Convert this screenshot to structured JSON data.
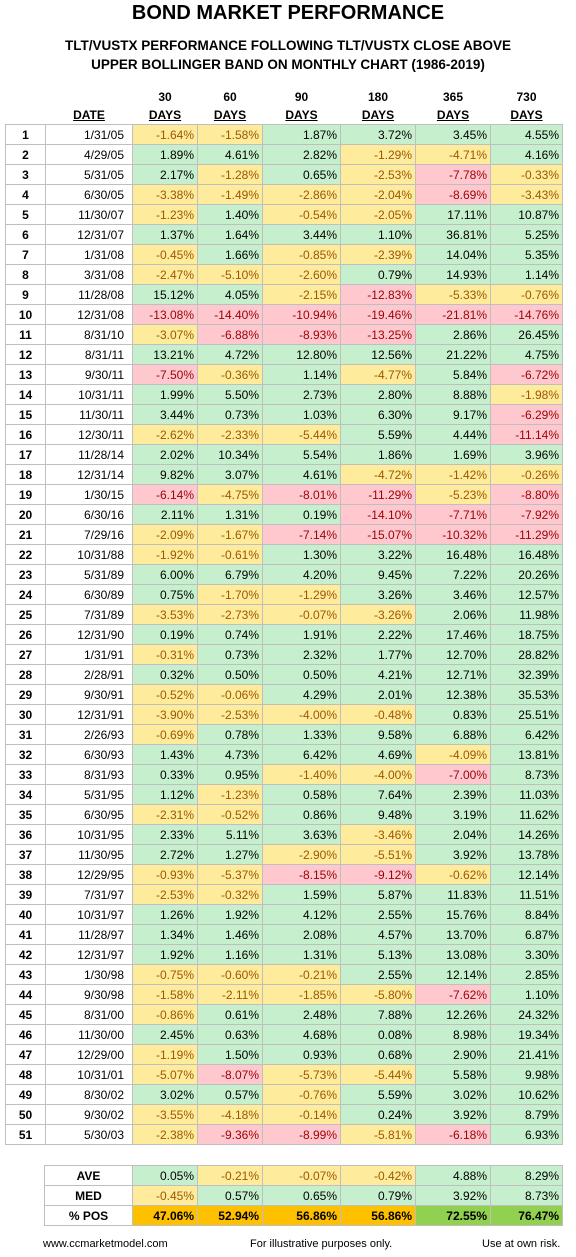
{
  "header": {
    "title": "BOND MARKET PERFORMANCE",
    "subtitle_lines": [
      "TLT/VUSTX PERFORMANCE FOLLOWING TLT/VUSTX CLOSE ABOVE",
      "UPPER BOLLINGER BAND ON MONTHLY CHART (1986-2019)"
    ]
  },
  "table": {
    "date_header": "DATE",
    "columns": [
      {
        "days": "30",
        "unit": "DAYS"
      },
      {
        "days": "60",
        "unit": "DAYS"
      },
      {
        "days": "90",
        "unit": "DAYS"
      },
      {
        "days": "180",
        "unit": "DAYS"
      },
      {
        "days": "365",
        "unit": "DAYS"
      },
      {
        "days": "730",
        "unit": "DAYS"
      }
    ],
    "fills": {
      "positive": "#c6efce",
      "negative": "#ffeb9c",
      "large_negative": "#ffc7ce"
    },
    "rows": [
      [
        1,
        "1/31/05",
        "-1.64%",
        "-1.58%",
        "1.87%",
        "3.72%",
        "3.45%",
        "4.55%"
      ],
      [
        2,
        "4/29/05",
        "1.89%",
        "4.61%",
        "2.82%",
        "-1.29%",
        "-4.71%",
        "4.16%"
      ],
      [
        3,
        "5/31/05",
        "2.17%",
        "-1.28%",
        "0.65%",
        "-2.53%",
        "-7.78%",
        "-0.33%"
      ],
      [
        4,
        "6/30/05",
        "-3.38%",
        "-1.49%",
        "-2.86%",
        "-2.04%",
        "-8.69%",
        "-3.43%"
      ],
      [
        5,
        "11/30/07",
        "-1.23%",
        "1.40%",
        "-0.54%",
        "-2.05%",
        "17.11%",
        "10.87%"
      ],
      [
        6,
        "12/31/07",
        "1.37%",
        "1.64%",
        "3.44%",
        "1.10%",
        "36.81%",
        "5.25%"
      ],
      [
        7,
        "1/31/08",
        "-0.45%",
        "1.66%",
        "-0.85%",
        "-2.39%",
        "14.04%",
        "5.35%"
      ],
      [
        8,
        "3/31/08",
        "-2.47%",
        "-5.10%",
        "-2.60%",
        "0.79%",
        "14.93%",
        "1.14%"
      ],
      [
        9,
        "11/28/08",
        "15.12%",
        "4.05%",
        "-2.15%",
        "-12.83%",
        "-5.33%",
        "-0.76%"
      ],
      [
        10,
        "12/31/08",
        "-13.08%",
        "-14.40%",
        "-10.94%",
        "-19.46%",
        "-21.81%",
        "-14.76%"
      ],
      [
        11,
        "8/31/10",
        "-3.07%",
        "-6.88%",
        "-8.93%",
        "-13.25%",
        "2.86%",
        "26.45%"
      ],
      [
        12,
        "8/31/11",
        "13.21%",
        "4.72%",
        "12.80%",
        "12.56%",
        "21.22%",
        "4.75%"
      ],
      [
        13,
        "9/30/11",
        "-7.50%",
        "-0.36%",
        "1.14%",
        "-4.77%",
        "5.84%",
        "-6.72%"
      ],
      [
        14,
        "10/31/11",
        "1.99%",
        "5.50%",
        "2.73%",
        "2.80%",
        "8.88%",
        "-1.98%"
      ],
      [
        15,
        "11/30/11",
        "3.44%",
        "0.73%",
        "1.03%",
        "6.30%",
        "9.17%",
        "-6.29%"
      ],
      [
        16,
        "12/30/11",
        "-2.62%",
        "-2.33%",
        "-5.44%",
        "5.59%",
        "4.44%",
        "-11.14%"
      ],
      [
        17,
        "11/28/14",
        "2.02%",
        "10.34%",
        "5.54%",
        "1.86%",
        "1.69%",
        "3.96%"
      ],
      [
        18,
        "12/31/14",
        "9.82%",
        "3.07%",
        "4.61%",
        "-4.72%",
        "-1.42%",
        "-0.26%"
      ],
      [
        19,
        "1/30/15",
        "-6.14%",
        "-4.75%",
        "-8.01%",
        "-11.29%",
        "-5.23%",
        "-8.80%"
      ],
      [
        20,
        "6/30/16",
        "2.11%",
        "1.31%",
        "0.19%",
        "-14.10%",
        "-7.71%",
        "-7.92%"
      ],
      [
        21,
        "7/29/16",
        "-2.09%",
        "-1.67%",
        "-7.14%",
        "-15.07%",
        "-10.32%",
        "-11.29%"
      ],
      [
        22,
        "10/31/88",
        "-1.92%",
        "-0.61%",
        "1.30%",
        "3.22%",
        "16.48%",
        "16.48%"
      ],
      [
        23,
        "5/31/89",
        "6.00%",
        "6.79%",
        "4.20%",
        "9.45%",
        "7.22%",
        "20.26%"
      ],
      [
        24,
        "6/30/89",
        "0.75%",
        "-1.70%",
        "-1.29%",
        "3.26%",
        "3.46%",
        "12.57%"
      ],
      [
        25,
        "7/31/89",
        "-3.53%",
        "-2.73%",
        "-0.07%",
        "-3.26%",
        "2.06%",
        "11.98%"
      ],
      [
        26,
        "12/31/90",
        "0.19%",
        "0.74%",
        "1.91%",
        "2.22%",
        "17.46%",
        "18.75%"
      ],
      [
        27,
        "1/31/91",
        "-0.31%",
        "0.73%",
        "2.32%",
        "1.77%",
        "12.70%",
        "28.82%"
      ],
      [
        28,
        "2/28/91",
        "0.32%",
        "0.50%",
        "0.50%",
        "4.21%",
        "12.71%",
        "32.39%"
      ],
      [
        29,
        "9/30/91",
        "-0.52%",
        "-0.06%",
        "4.29%",
        "2.01%",
        "12.38%",
        "35.53%"
      ],
      [
        30,
        "12/31/91",
        "-3.90%",
        "-2.53%",
        "-4.00%",
        "-0.48%",
        "0.83%",
        "25.51%"
      ],
      [
        31,
        "2/26/93",
        "-0.69%",
        "0.78%",
        "1.33%",
        "9.58%",
        "6.88%",
        "6.42%"
      ],
      [
        32,
        "6/30/93",
        "1.43%",
        "4.73%",
        "6.42%",
        "4.69%",
        "-4.09%",
        "13.81%"
      ],
      [
        33,
        "8/31/93",
        "0.33%",
        "0.95%",
        "-1.40%",
        "-4.00%",
        "-7.00%",
        "8.73%"
      ],
      [
        34,
        "5/31/95",
        "1.12%",
        "-1.23%",
        "0.58%",
        "7.64%",
        "2.39%",
        "11.03%"
      ],
      [
        35,
        "6/30/95",
        "-2.31%",
        "-0.52%",
        "0.86%",
        "9.48%",
        "3.19%",
        "11.62%"
      ],
      [
        36,
        "10/31/95",
        "2.33%",
        "5.11%",
        "3.63%",
        "-3.46%",
        "2.04%",
        "14.26%"
      ],
      [
        37,
        "11/30/95",
        "2.72%",
        "1.27%",
        "-2.90%",
        "-5.51%",
        "3.92%",
        "13.78%"
      ],
      [
        38,
        "12/29/95",
        "-0.93%",
        "-5.37%",
        "-8.15%",
        "-9.12%",
        "-0.62%",
        "12.14%"
      ],
      [
        39,
        "7/31/97",
        "-2.53%",
        "-0.32%",
        "1.59%",
        "5.87%",
        "11.83%",
        "11.51%"
      ],
      [
        40,
        "10/31/97",
        "1.26%",
        "1.92%",
        "4.12%",
        "2.55%",
        "15.76%",
        "8.84%"
      ],
      [
        41,
        "11/28/97",
        "1.34%",
        "1.46%",
        "2.08%",
        "4.57%",
        "13.70%",
        "6.87%"
      ],
      [
        42,
        "12/31/97",
        "1.92%",
        "1.16%",
        "1.31%",
        "5.13%",
        "13.08%",
        "3.30%"
      ],
      [
        43,
        "1/30/98",
        "-0.75%",
        "-0.60%",
        "-0.21%",
        "2.55%",
        "12.14%",
        "2.85%"
      ],
      [
        44,
        "9/30/98",
        "-1.58%",
        "-2.11%",
        "-1.85%",
        "-5.80%",
        "-7.62%",
        "1.10%"
      ],
      [
        45,
        "8/31/00",
        "-0.86%",
        "0.61%",
        "2.48%",
        "7.88%",
        "12.26%",
        "24.32%"
      ],
      [
        46,
        "11/30/00",
        "2.45%",
        "0.63%",
        "4.68%",
        "0.08%",
        "8.98%",
        "19.34%"
      ],
      [
        47,
        "12/29/00",
        "-1.19%",
        "1.50%",
        "0.93%",
        "0.68%",
        "2.90%",
        "21.41%"
      ],
      [
        48,
        "10/31/01",
        "-5.07%",
        "-8.07%",
        "-5.73%",
        "-5.44%",
        "5.58%",
        "9.98%"
      ],
      [
        49,
        "8/30/02",
        "3.02%",
        "0.57%",
        "-0.76%",
        "5.59%",
        "3.02%",
        "10.62%"
      ],
      [
        50,
        "9/30/02",
        "-3.55%",
        "-4.18%",
        "-0.14%",
        "0.24%",
        "3.92%",
        "8.79%"
      ],
      [
        51,
        "5/30/03",
        "-2.38%",
        "-9.36%",
        "-8.99%",
        "-5.81%",
        "-6.18%",
        "6.93%"
      ]
    ]
  },
  "summary": {
    "rows": [
      [
        "AVE",
        "0.05%",
        "-0.21%",
        "-0.07%",
        "-0.42%",
        "4.88%",
        "8.29%"
      ],
      [
        "MED",
        "-0.45%",
        "0.57%",
        "0.65%",
        "0.79%",
        "3.92%",
        "8.73%"
      ],
      [
        "% POS",
        "47.06%",
        "52.94%",
        "56.86%",
        "56.86%",
        "72.55%",
        "76.47%"
      ]
    ],
    "pos_row_colors": [
      "#ffc000",
      "#ffc000",
      "#ffc000",
      "#ffc000",
      "#92d050",
      "#92d050"
    ]
  },
  "footer": {
    "left": "www.ccmarketmodel.com",
    "center": "For illustrative purposes only.",
    "right": "Use at own risk."
  }
}
